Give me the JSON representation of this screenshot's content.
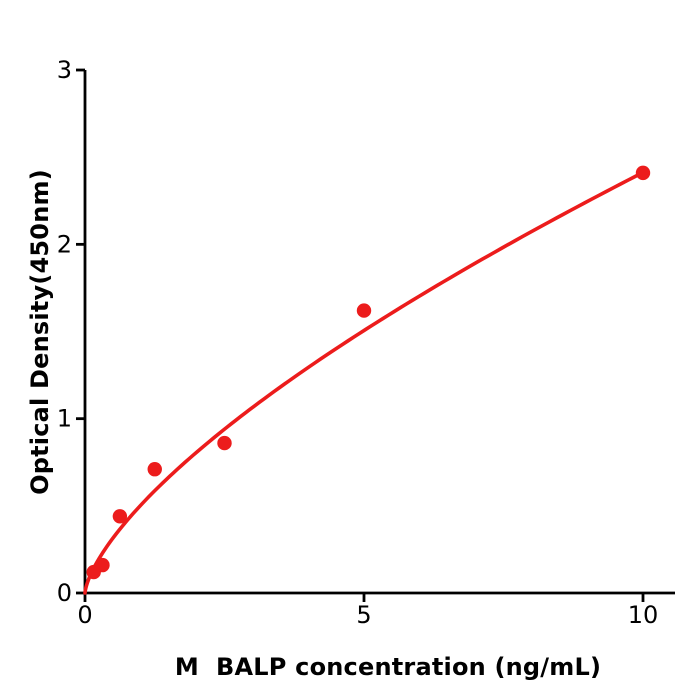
{
  "figure": {
    "background_color": "#ffffff",
    "text_color": "#000000"
  },
  "chart_data": {
    "type": "scatter",
    "title": "",
    "xlabel": "M  BALP concentration (ng/mL)",
    "ylabel": "Optical Density(450nm)",
    "x": [
      0.156,
      0.313,
      0.625,
      1.25,
      2.5,
      5,
      10
    ],
    "y": [
      0.12,
      0.16,
      0.44,
      0.71,
      0.86,
      1.62,
      2.41
    ],
    "fit_curve": {
      "type": "power",
      "a": 0.504,
      "b": 0.68,
      "x_start": 0,
      "x_end": 10
    },
    "x_ticks": [
      "0",
      "5",
      "10"
    ],
    "x_tick_values": [
      0,
      5,
      10
    ],
    "y_ticks": [
      "0",
      "1",
      "2",
      "3"
    ],
    "y_tick_values": [
      0,
      1,
      2,
      3
    ],
    "xlim": [
      0,
      10.6
    ],
    "ylim": [
      0,
      3
    ],
    "grid": false,
    "legend_position": "none",
    "marker_color": "#ec1c1c",
    "line_color": "#ec1c1c",
    "axis_color": "#000000",
    "marker_radius": 7.2,
    "line_width": 3.6,
    "axis_width": 2.8,
    "tick_font_size": 24,
    "title_font_size": 24
  }
}
